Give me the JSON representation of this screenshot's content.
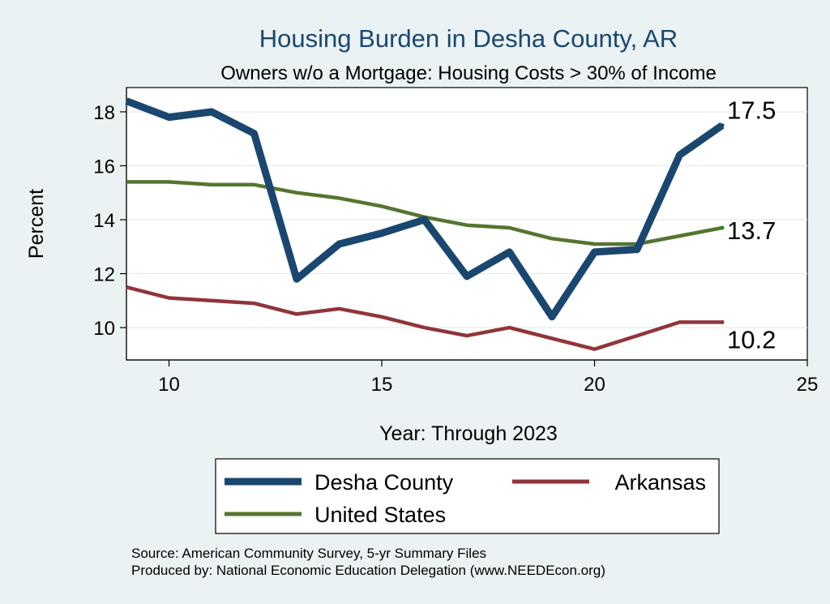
{
  "colors": {
    "background": "#eaf2f3",
    "plot_background": "#ffffff",
    "grid": "#e8f0f1",
    "title": "#1a476f"
  },
  "chart_data": {
    "type": "line",
    "title": "Housing Burden in Desha County, AR",
    "subtitle": "Owners w/o a Mortgage: Housing Costs > 30% of Income",
    "xlabel": "Year: Through 2023",
    "ylabel": "Percent",
    "xlim": [
      9,
      25
    ],
    "ylim": [
      8.8,
      18.9
    ],
    "xticks": [
      10,
      15,
      20,
      25
    ],
    "yticks": [
      10,
      12,
      14,
      16,
      18
    ],
    "grid": true,
    "legend_position": "bottom",
    "x": [
      9,
      10,
      11,
      12,
      13,
      14,
      15,
      16,
      17,
      18,
      19,
      20,
      21,
      22,
      23
    ],
    "series": [
      {
        "name": "Desha County",
        "color": "#1a476f",
        "values": [
          18.4,
          17.8,
          18.0,
          17.2,
          11.8,
          13.1,
          13.5,
          14.0,
          11.9,
          12.8,
          10.4,
          12.8,
          12.9,
          16.4,
          17.5
        ],
        "end_label": "17.5"
      },
      {
        "name": "Arkansas",
        "color": "#90353b",
        "values": [
          11.5,
          11.1,
          11.0,
          10.9,
          10.5,
          10.7,
          10.4,
          10.0,
          9.7,
          10.0,
          9.6,
          9.2,
          9.7,
          10.2,
          10.2
        ],
        "end_label": "10.2"
      },
      {
        "name": "United States",
        "color": "#55752f",
        "values": [
          15.4,
          15.4,
          15.3,
          15.3,
          15.0,
          14.8,
          14.5,
          14.1,
          13.8,
          13.7,
          13.3,
          13.1,
          13.1,
          13.4,
          13.7
        ],
        "end_label": "13.7"
      }
    ]
  },
  "notes": {
    "source": "Source: American Community Survey, 5-yr Summary Files",
    "producer": "Produced by: National Economic Education Delegation (www.NEEDEcon.org)"
  }
}
